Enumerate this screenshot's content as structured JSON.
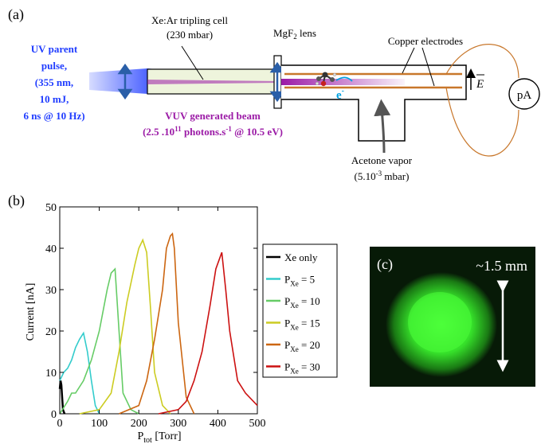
{
  "colors": {
    "uv": "#1f3cff",
    "vuv": "#9b1aa6",
    "copper": "#c8772b",
    "cell_fill": "#eef4dc",
    "electron": "#00a0e0",
    "beam_green": "#3cff3c",
    "beam_bg": "#071a07"
  },
  "panel_a": {
    "label": "(a)",
    "uv_lines": [
      "UV parent",
      "pulse,",
      "(355 nm,",
      "10 mJ,",
      "6 ns @ 10 Hz)"
    ],
    "cell_title": "Xe:Ar tripling cell",
    "cell_pressure": "(230 mbar)",
    "lens_prefix": "MgF",
    "lens_sub": "2",
    "lens_suffix": " lens",
    "electrodes": "Copper electrodes",
    "field_symbol": "E",
    "ammeter": "pA",
    "electron": "e",
    "electron_sup": "-",
    "vuv_title": "VUV generated beam",
    "vuv_detail_a": "(2.5 .10",
    "vuv_detail_exp": "11",
    "vuv_detail_b": " photons.s",
    "vuv_detail_exp2": "-1",
    "vuv_detail_c": "  @ 10.5 eV)",
    "acetone": "Acetone vapor",
    "acetone_p_a": "(5.10",
    "acetone_p_exp": "-3",
    "acetone_p_b": " mbar)"
  },
  "panel_b": {
    "label": "(b)",
    "ylabel": "Current [nA]",
    "xlabel_main": "P",
    "xlabel_sub": "tot",
    "xlabel_unit": " [Torr]"
  },
  "panel_c": {
    "label": "(c)",
    "scale": "~1.5 mm"
  },
  "chart_data": {
    "type": "line",
    "xlim": [
      0,
      500
    ],
    "ylim": [
      0,
      50
    ],
    "xticks": [
      0,
      100,
      200,
      300,
      400,
      500
    ],
    "yticks": [
      0,
      10,
      20,
      30,
      40,
      50
    ],
    "legend_position": "right",
    "series": [
      {
        "name": "Xe only",
        "label_main": "Xe only",
        "label_sub": "",
        "label_val": "",
        "color": "#000000",
        "x": [
          0,
          2,
          4,
          6,
          8,
          12
        ],
        "y": [
          6,
          8,
          7,
          4,
          1,
          0
        ]
      },
      {
        "name": "P_Xe = 5",
        "label_main": "P",
        "label_sub": "Xe",
        "label_val": " = 5",
        "color": "#33cccc",
        "x": [
          0,
          10,
          20,
          30,
          40,
          50,
          60,
          70,
          80,
          90,
          100
        ],
        "y": [
          8,
          10,
          11,
          13,
          16,
          18,
          19.5,
          15,
          8,
          2,
          0
        ]
      },
      {
        "name": "P_Xe = 10",
        "label_main": "P",
        "label_sub": "Xe",
        "label_val": " = 10",
        "color": "#66cc66",
        "x": [
          0,
          20,
          30,
          40,
          60,
          80,
          100,
          120,
          130,
          140,
          150,
          160,
          180,
          200
        ],
        "y": [
          0,
          3,
          5,
          5,
          8,
          13,
          20,
          30,
          34,
          35,
          20,
          5,
          1,
          0
        ]
      },
      {
        "name": "P_Xe = 15",
        "label_main": "P",
        "label_sub": "Xe",
        "label_val": " = 15",
        "color": "#cccc22",
        "x": [
          50,
          100,
          130,
          150,
          170,
          190,
          200,
          210,
          220,
          230,
          240,
          260,
          280
        ],
        "y": [
          0,
          1,
          5,
          15,
          27,
          36,
          40,
          42,
          39,
          25,
          10,
          2,
          0
        ]
      },
      {
        "name": "P_Xe = 20",
        "label_main": "P",
        "label_sub": "Xe",
        "label_val": " = 20",
        "color": "#cc6611",
        "x": [
          150,
          200,
          220,
          240,
          260,
          270,
          280,
          285,
          290,
          300,
          320,
          340
        ],
        "y": [
          0,
          2,
          8,
          18,
          30,
          40,
          43,
          43.5,
          40,
          22,
          4,
          0
        ]
      },
      {
        "name": "P_Xe = 30",
        "label_main": "P",
        "label_sub": "Xe",
        "label_val": " = 30",
        "color": "#cc1111",
        "x": [
          250,
          300,
          320,
          340,
          360,
          380,
          395,
          410,
          420,
          430,
          450,
          470,
          500
        ],
        "y": [
          0,
          1,
          3,
          8,
          15,
          26,
          35,
          39,
          30,
          20,
          8,
          5,
          2
        ]
      }
    ]
  }
}
